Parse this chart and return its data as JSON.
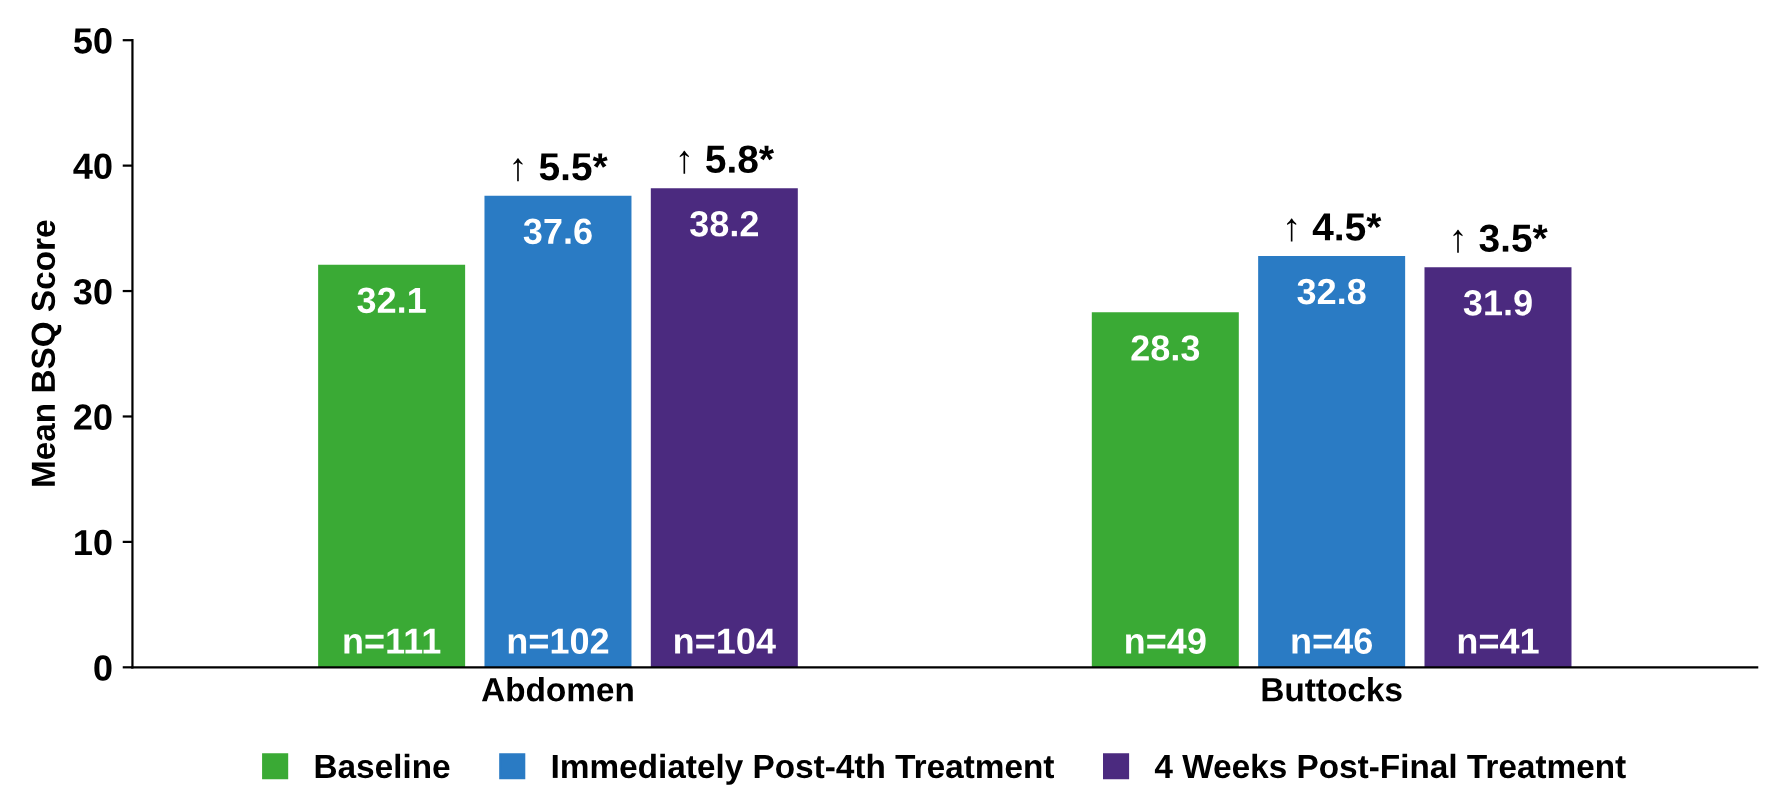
{
  "chart_data": {
    "type": "bar",
    "ylabel": "Mean BSQ Score",
    "categories": [
      "Abdomen",
      "Buttocks"
    ],
    "series": [
      {
        "name": "Baseline",
        "color": "#3aaa35",
        "values": [
          32.1,
          28.3
        ]
      },
      {
        "name": "Immediately Post-4th Treatment",
        "color": "#2a7bc4",
        "values": [
          37.6,
          32.8
        ]
      },
      {
        "name": "4 Weeks Post-Final Treatment",
        "color": "#4b2a7f",
        "values": [
          38.2,
          31.9
        ]
      }
    ],
    "ylim": [
      0,
      50
    ],
    "yticks": [
      0,
      10,
      20,
      30,
      40,
      50
    ],
    "grid": false,
    "legend": "bottom",
    "data_labels": true,
    "annotations": [
      "n=111",
      "n=102",
      "n=104",
      "n=49",
      "n=46",
      "n=41",
      "↑ 5.5*",
      "↑ 5.8*",
      "↑ 4.5*",
      "↑ 3.5*"
    ]
  }
}
